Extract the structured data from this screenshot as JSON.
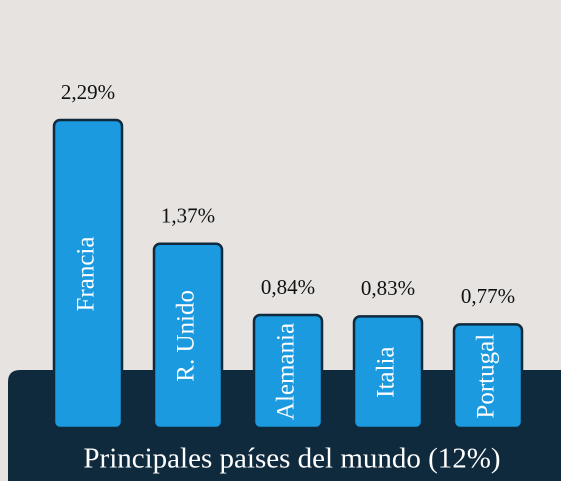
{
  "chart_data": {
    "type": "bar",
    "title": "Principales países del mundo (12%)",
    "categories": [
      "Francia",
      "R. Unido",
      "Alemania",
      "Italia",
      "Portugal"
    ],
    "values": [
      2.29,
      1.37,
      0.84,
      0.83,
      0.77
    ],
    "value_labels": [
      "2,29%",
      "1,37%",
      "0,84%",
      "0,83%",
      "0,77%"
    ],
    "color": "#1b9ae0"
  }
}
